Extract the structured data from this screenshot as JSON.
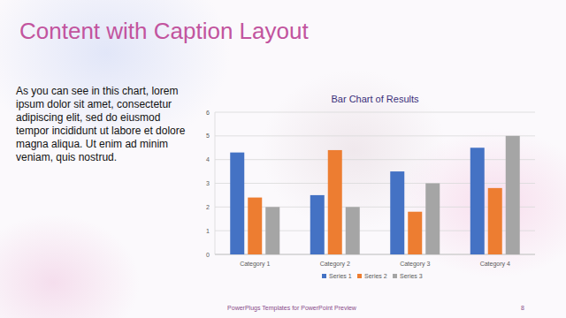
{
  "slide": {
    "title": "Content with Caption Layout",
    "caption": "As you can see in this chart, lorem ipsum dolor sit amet, consectetur adipiscing elit, sed do eiusmod tempor incididunt ut labore et dolore magna aliqua. Ut enim ad minim veniam, quis nostrud.",
    "footer": "PowerPlugs Templates for PowerPoint Preview",
    "page_number": "8"
  },
  "chart_data": {
    "type": "bar",
    "title": "Bar Chart of Results",
    "categories": [
      "Category 1",
      "Category 2",
      "Category 3",
      "Category 4"
    ],
    "series": [
      {
        "name": "Series 1",
        "color": "#4472c4",
        "values": [
          4.3,
          2.5,
          3.5,
          4.5
        ]
      },
      {
        "name": "Series 2",
        "color": "#ed7d31",
        "values": [
          2.4,
          4.4,
          1.8,
          2.8
        ]
      },
      {
        "name": "Series 3",
        "color": "#a5a5a5",
        "values": [
          2,
          2,
          3,
          5
        ]
      }
    ],
    "ylim": [
      0,
      6
    ],
    "yticks": [
      0,
      1,
      2,
      3,
      4,
      5,
      6
    ],
    "grid": true,
    "legend": "bottom"
  }
}
